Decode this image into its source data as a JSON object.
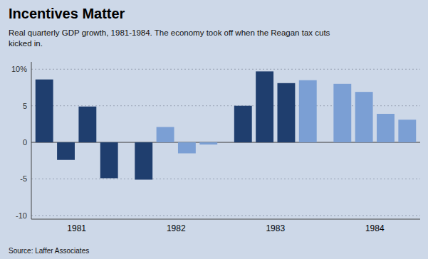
{
  "chart_data": {
    "type": "bar",
    "title": "Incentives Matter",
    "subtitle": "Real quarterly GDP growth, 1981-1984. The economy took off when the Reagan tax cuts\nkicked in.",
    "source": "Source: Laffer Associates",
    "categories": [
      "1981",
      null,
      null,
      null,
      "1982",
      null,
      null,
      null,
      "1983",
      null,
      null,
      null,
      "1984",
      null,
      null,
      null
    ],
    "values": [
      8.6,
      -2.4,
      4.9,
      -4.9,
      -5.1,
      2.1,
      -1.5,
      -0.3,
      5.0,
      9.7,
      8.1,
      8.5,
      8.0,
      6.9,
      3.9,
      3.1
    ],
    "colors": [
      "#1f3e6e",
      "#1f3e6e",
      "#1f3e6e",
      "#1f3e6e",
      "#1f3e6e",
      "#7b9fd4",
      "#7b9fd4",
      "#7b9fd4",
      "#1f3e6e",
      "#1f3e6e",
      "#1f3e6e",
      "#7b9fd4",
      "#7b9fd4",
      "#7b9fd4",
      "#7b9fd4",
      "#7b9fd4"
    ],
    "ylim": [
      -10.5,
      11
    ],
    "yticks": [
      -10,
      -5,
      0,
      5,
      {
        "value": 10,
        "label": "10%"
      }
    ],
    "grid": true
  }
}
